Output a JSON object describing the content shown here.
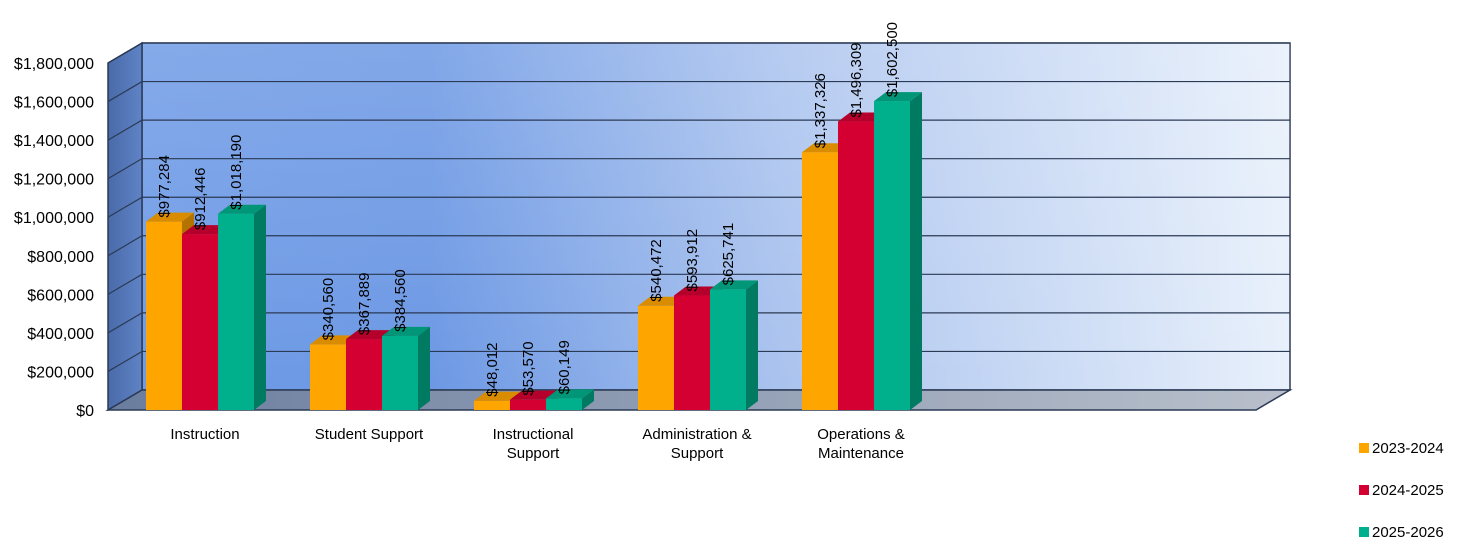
{
  "chart_data": {
    "type": "bar",
    "title": "",
    "xlabel": "",
    "ylabel": "",
    "ylim": [
      0,
      1800000
    ],
    "yticks": [
      "$0",
      "$200,000",
      "$400,000",
      "$600,000",
      "$800,000",
      "$1,000,000",
      "$1,200,000",
      "$1,400,000",
      "$1,600,000",
      "$1,800,000"
    ],
    "categories": [
      [
        "Instruction"
      ],
      [
        "Student Support"
      ],
      [
        "Instructional",
        "Support"
      ],
      [
        "Administration &",
        "Support"
      ],
      [
        "Operations &",
        "Maintenance"
      ]
    ],
    "series": [
      {
        "name": "2023-2024",
        "color": "#FFA500",
        "values": [
          977284,
          340560,
          48012,
          540472,
          1337326
        ],
        "labels": [
          "$977,284",
          "$340,560",
          "$48,012",
          "$540,472",
          "$1,337,326"
        ]
      },
      {
        "name": "2024-2025",
        "color": "#D40032",
        "values": [
          912446,
          367889,
          53570,
          593912,
          1496309
        ],
        "labels": [
          "$912,446",
          "$367,889",
          "$53,570",
          "$593,912",
          "$1,496,309"
        ]
      },
      {
        "name": "2025-2026",
        "color": "#00B08C",
        "values": [
          1018190,
          384560,
          60149,
          625741,
          1602500
        ],
        "labels": [
          "$1,018,190",
          "$384,560",
          "$60,149",
          "$625,741",
          "$1,602,500"
        ]
      }
    ],
    "grid": true,
    "legend": "bottom-right",
    "style": "3d"
  }
}
